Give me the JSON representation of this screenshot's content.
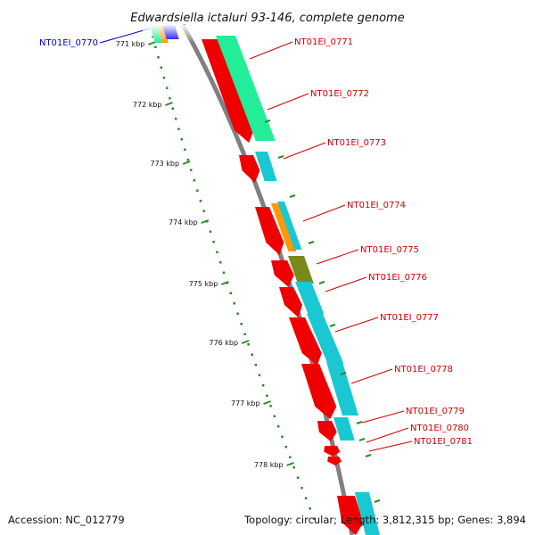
{
  "title": "Edwardsiella ictaluri 93-146, complete genome",
  "footer": {
    "accession": "Accession: NC_012779",
    "summary": "Topology: circular; Length: 3,812,315 bp; Genes: 3,894"
  },
  "colors": {
    "backbone": "#808080",
    "tick": "#2a8a2a",
    "gene_label": "#cc0000",
    "highlight_label": "#0000cc",
    "forward_gene": "#ee0000",
    "cog_green": "#22ee99",
    "cog_cyan": "#19c8d2",
    "cog_orange": "#ff9900",
    "cog_olive": "#7a8a1a",
    "cog_blue": "#0000ee"
  },
  "scale_labels": [
    "771 kbp",
    "772 kbp",
    "773 kbp",
    "774 kbp",
    "775 kbp",
    "776 kbp",
    "777 kbp",
    "778 kbp"
  ],
  "genes": [
    {
      "label": "NT01EI_0770",
      "highlight": true
    },
    {
      "label": "NT01EI_0771"
    },
    {
      "label": "NT01EI_0772"
    },
    {
      "label": "NT01EI_0773"
    },
    {
      "label": "NT01EI_0774"
    },
    {
      "label": "NT01EI_0775"
    },
    {
      "label": "NT01EI_0776"
    },
    {
      "label": "NT01EI_0777"
    },
    {
      "label": "NT01EI_0778"
    },
    {
      "label": "NT01EI_0779"
    },
    {
      "label": "NT01EI_0780"
    },
    {
      "label": "NT01EI_0781"
    }
  ]
}
